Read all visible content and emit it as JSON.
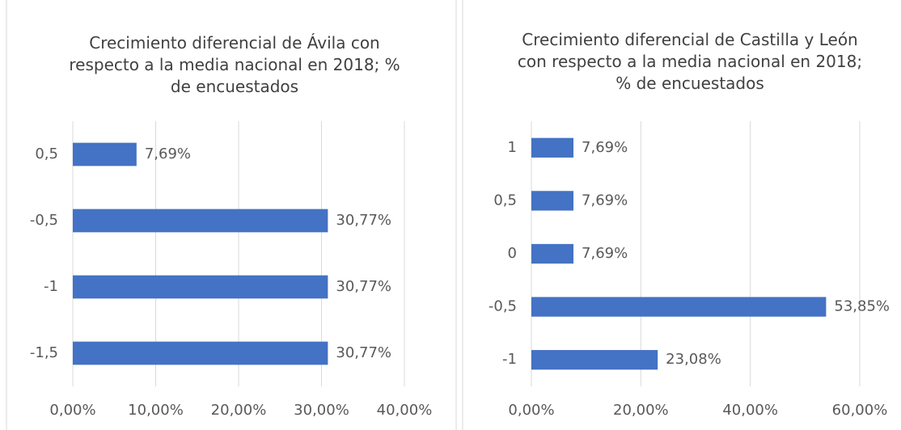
{
  "chart_data": [
    {
      "type": "barh",
      "title": "Crecimiento diferencial de Ávila con respecto a la media nacional en 2018; % de encuestados",
      "categories": [
        "0,5",
        "-0,5",
        "-1",
        "-1,5"
      ],
      "values": [
        7.69,
        30.77,
        30.77,
        30.77
      ],
      "value_labels": [
        "7,69%",
        "30,77%",
        "30,77%",
        "30,77%"
      ],
      "color": "#4472c4",
      "grid": true,
      "xlim": [
        0,
        40
      ],
      "xticks": [
        {
          "value": 0,
          "label": "0,00%"
        },
        {
          "value": 10,
          "label": "10,00%"
        },
        {
          "value": 20,
          "label": "20,00%"
        },
        {
          "value": 30,
          "label": "30,00%"
        },
        {
          "value": 40,
          "label": "40,00%"
        }
      ]
    },
    {
      "type": "barh",
      "title": "Crecimiento diferencial de Castilla y León con respecto a la media nacional en 2018; % de encuestados",
      "categories": [
        "1",
        "0,5",
        "0",
        "-0,5",
        "-1"
      ],
      "values": [
        7.69,
        7.69,
        7.69,
        53.85,
        23.08
      ],
      "value_labels": [
        "7,69%",
        "7,69%",
        "7,69%",
        "53,85%",
        "23,08%"
      ],
      "color": "#4472c4",
      "grid": true,
      "xlim": [
        0,
        60
      ],
      "xticks": [
        {
          "value": 0,
          "label": "0,00%"
        },
        {
          "value": 20,
          "label": "20,00%"
        },
        {
          "value": 40,
          "label": "40,00%"
        },
        {
          "value": 60,
          "label": "60,00%"
        }
      ]
    }
  ]
}
